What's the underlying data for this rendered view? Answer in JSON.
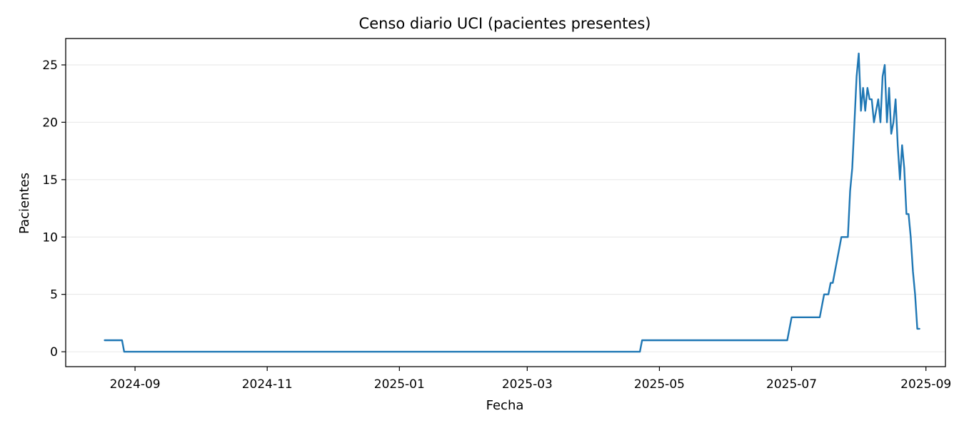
{
  "chart_data": {
    "type": "line",
    "title": "Censo diario UCI (pacientes presentes)",
    "xlabel": "Fecha",
    "ylabel": "Pacientes",
    "x_axis_type": "date",
    "xlim": [
      "2024-07-31",
      "2025-09-10"
    ],
    "ylim": [
      -1.3,
      27.3
    ],
    "x_ticks": [
      "2024-09",
      "2024-11",
      "2025-01",
      "2025-03",
      "2025-05",
      "2025-07",
      "2025-09"
    ],
    "y_ticks": [
      0,
      5,
      10,
      15,
      20,
      25
    ],
    "grid": {
      "y": true,
      "x": false
    },
    "line_color": "#1f77b4",
    "series": [
      {
        "x": [
          "2024-08-18",
          "2024-08-26",
          "2024-08-27",
          "2025-04-22",
          "2025-04-23",
          "2025-06-29",
          "2025-07-01",
          "2025-07-14",
          "2025-07-16",
          "2025-07-18",
          "2025-07-19",
          "2025-07-20",
          "2025-07-22",
          "2025-07-24",
          "2025-07-27",
          "2025-07-27",
          "2025-07-28",
          "2025-07-29",
          "2025-07-30",
          "2025-07-31",
          "2025-08-01",
          "2025-08-02",
          "2025-08-03",
          "2025-08-04",
          "2025-08-05",
          "2025-08-06",
          "2025-08-07",
          "2025-08-08",
          "2025-08-09",
          "2025-08-10",
          "2025-08-11",
          "2025-08-12",
          "2025-08-13",
          "2025-08-14",
          "2025-08-15",
          "2025-08-16",
          "2025-08-17",
          "2025-08-18",
          "2025-08-19",
          "2025-08-20",
          "2025-08-21",
          "2025-08-22",
          "2025-08-23",
          "2025-08-24",
          "2025-08-25",
          "2025-08-26",
          "2025-08-27",
          "2025-08-28",
          "2025-08-29"
        ],
        "y": [
          1,
          1,
          0,
          0,
          1,
          1,
          3,
          3,
          5,
          5,
          6,
          6,
          8,
          10,
          10,
          10,
          14,
          16,
          20,
          24,
          26,
          21,
          23,
          21,
          23,
          22,
          22,
          20,
          21,
          22,
          20,
          24,
          25,
          20,
          23,
          19,
          20,
          22,
          18,
          15,
          18,
          16,
          12,
          12,
          10,
          7,
          5,
          2,
          2
        ]
      }
    ]
  }
}
